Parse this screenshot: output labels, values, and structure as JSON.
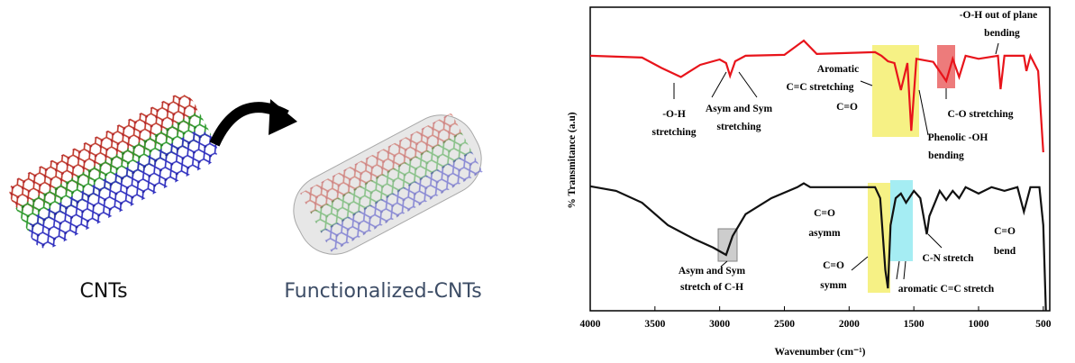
{
  "left_panel": {
    "labels": [
      "CNTs",
      "Functionalized-CNTs"
    ]
  },
  "chart_data": {
    "type": "line",
    "x_label": "Wavenumber (cm⁻¹)",
    "y_label": "% Transmitance (a.u)",
    "xlim": [
      4000,
      450
    ],
    "xticks": [
      4000,
      3500,
      3000,
      2500,
      2000,
      1500,
      1000,
      500
    ],
    "ylim": [
      0,
      100
    ],
    "series": [
      {
        "color": "#e8141b",
        "x": [
          4000,
          3600,
          3450,
          3300,
          3150,
          3000,
          2950,
          2920,
          2880,
          2800,
          2500,
          2350,
          2250,
          1800,
          1750,
          1700,
          1650,
          1600,
          1550,
          1520,
          1480,
          1350,
          1250,
          1200,
          1150,
          1100,
          1000,
          850,
          830,
          800,
          650,
          630,
          600,
          540,
          500
        ],
        "values": [
          84,
          83.4,
          80,
          77,
          81,
          82.8,
          81.6,
          77.4,
          82.2,
          84,
          84.3,
          89,
          84.6,
          85.2,
          84,
          82.2,
          81.6,
          72.7,
          81.6,
          59.3,
          83,
          82,
          75.7,
          83,
          77,
          84,
          83,
          84,
          73,
          84,
          84,
          79,
          84,
          79,
          52.2
        ]
      },
      {
        "color": "#111111",
        "x": [
          4000,
          3800,
          3600,
          3400,
          3200,
          3050,
          2950,
          2900,
          2800,
          2600,
          2400,
          2350,
          2300,
          2000,
          1800,
          1760,
          1720,
          1700,
          1680,
          1640,
          1600,
          1560,
          1500,
          1450,
          1400,
          1380,
          1300,
          1250,
          1200,
          1150,
          1100,
          1000,
          900,
          800,
          700,
          650,
          600,
          530,
          500,
          480
        ],
        "values": [
          41,
          39.5,
          35.6,
          28.2,
          23.7,
          20.8,
          18.4,
          24.6,
          31.8,
          37.1,
          40.7,
          42,
          40.7,
          40.7,
          40.7,
          37.1,
          13.4,
          7.4,
          28.2,
          37.1,
          38.6,
          35.6,
          39.5,
          37.1,
          25.2,
          31.2,
          39.5,
          36.5,
          39.5,
          37.1,
          40.7,
          38.6,
          40.7,
          39.5,
          40.7,
          32.6,
          40.7,
          40.7,
          28.2,
          0
        ]
      }
    ],
    "annotations": [
      "-O-H",
      "stretching",
      "Asym and Sym",
      "stretching",
      "Aromatic",
      "C=C stretching",
      "C=O",
      "-O-H out of plane",
      "bending",
      "C-O stretching",
      "Phenolic -OH",
      "bending",
      "Asym and Sym",
      "stretch of C-H",
      "C=O",
      "asymm",
      "C=O",
      "symm",
      "C-N stretch",
      "C=O",
      "bend",
      "aromatic C=C stretch"
    ]
  }
}
